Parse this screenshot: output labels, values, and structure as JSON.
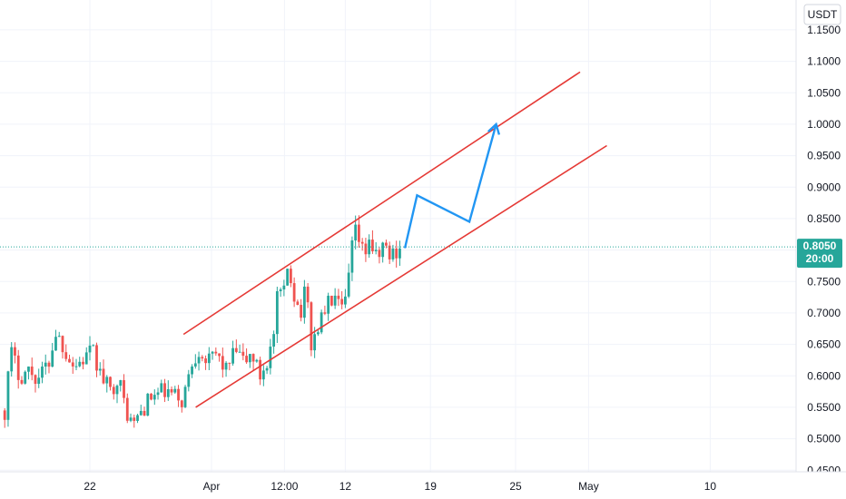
{
  "chart_data": {
    "type": "candlestick",
    "currency": "USDT",
    "ylim": [
      0.4475,
      1.1975
    ],
    "y_ticks": [
      {
        "value": 0.45,
        "label": "0.4500"
      },
      {
        "value": 0.5,
        "label": "0.5000"
      },
      {
        "value": 0.55,
        "label": "0.5500"
      },
      {
        "value": 0.6,
        "label": "0.6000"
      },
      {
        "value": 0.65,
        "label": "0.6500"
      },
      {
        "value": 0.7,
        "label": "0.7000"
      },
      {
        "value": 0.75,
        "label": "0.7500"
      },
      {
        "value": 0.8,
        "label": "0.8000"
      },
      {
        "value": 0.85,
        "label": "0.8500"
      },
      {
        "value": 0.9,
        "label": "0.9000"
      },
      {
        "value": 0.95,
        "label": "0.9500"
      },
      {
        "value": 1.0,
        "label": "1.0000"
      },
      {
        "value": 1.05,
        "label": "1.0500"
      },
      {
        "value": 1.1,
        "label": "1.1000"
      },
      {
        "value": 1.15,
        "label": "1.1500"
      }
    ],
    "x_ticks": [
      {
        "t": 0.0,
        "label": "22"
      },
      {
        "t": 10.0,
        "label": "Apr"
      },
      {
        "t": 16.0,
        "label": "12:00"
      },
      {
        "t": 21.0,
        "label": "12"
      },
      {
        "t": 28.0,
        "label": "19"
      },
      {
        "t": 35.0,
        "label": "25"
      },
      {
        "t": 41.0,
        "label": "May"
      },
      {
        "t": 51.0,
        "label": "10"
      }
    ],
    "last_price": {
      "value": 0.805,
      "label": "0.8050",
      "countdown": "20:00",
      "color": "#26a69a"
    },
    "colors": {
      "up": "#26a69a",
      "down": "#ef5350",
      "channel": "#e53935",
      "projection": "#2196f3",
      "grid": "#f0f3fa"
    },
    "price_path": [
      {
        "t": -7.0,
        "v": 0.545
      },
      {
        "t": -6.5,
        "v": 0.64
      },
      {
        "t": -5.8,
        "v": 0.6
      },
      {
        "t": -5.0,
        "v": 0.61
      },
      {
        "t": -4.3,
        "v": 0.595
      },
      {
        "t": -3.4,
        "v": 0.62
      },
      {
        "t": -2.8,
        "v": 0.67
      },
      {
        "t": -2.0,
        "v": 0.64
      },
      {
        "t": -1.3,
        "v": 0.615
      },
      {
        "t": -0.6,
        "v": 0.625
      },
      {
        "t": 0.2,
        "v": 0.64
      },
      {
        "t": 0.9,
        "v": 0.6
      },
      {
        "t": 1.7,
        "v": 0.575
      },
      {
        "t": 2.3,
        "v": 0.6
      },
      {
        "t": 2.9,
        "v": 0.55
      },
      {
        "t": 3.5,
        "v": 0.52
      },
      {
        "t": 4.1,
        "v": 0.54
      },
      {
        "t": 5.0,
        "v": 0.565
      },
      {
        "t": 6.0,
        "v": 0.575
      },
      {
        "t": 6.8,
        "v": 0.57
      },
      {
        "t": 7.6,
        "v": 0.56
      },
      {
        "t": 8.4,
        "v": 0.62
      },
      {
        "t": 9.0,
        "v": 0.645
      },
      {
        "t": 9.7,
        "v": 0.62
      },
      {
        "t": 10.4,
        "v": 0.635
      },
      {
        "t": 11.2,
        "v": 0.61
      },
      {
        "t": 12.0,
        "v": 0.64
      },
      {
        "t": 12.7,
        "v": 0.62
      },
      {
        "t": 13.3,
        "v": 0.635
      },
      {
        "t": 14.0,
        "v": 0.6
      },
      {
        "t": 14.6,
        "v": 0.625
      },
      {
        "t": 15.1,
        "v": 0.66
      },
      {
        "t": 15.5,
        "v": 0.74
      },
      {
        "t": 15.9,
        "v": 0.72
      },
      {
        "t": 16.3,
        "v": 0.78
      },
      {
        "t": 16.8,
        "v": 0.73
      },
      {
        "t": 17.3,
        "v": 0.7
      },
      {
        "t": 17.8,
        "v": 0.74
      },
      {
        "t": 18.2,
        "v": 0.65
      },
      {
        "t": 18.8,
        "v": 0.68
      },
      {
        "t": 19.4,
        "v": 0.71
      },
      {
        "t": 20.1,
        "v": 0.725
      },
      {
        "t": 20.6,
        "v": 0.7
      },
      {
        "t": 21.1,
        "v": 0.72
      },
      {
        "t": 21.5,
        "v": 0.8
      },
      {
        "t": 21.9,
        "v": 0.83
      },
      {
        "t": 22.5,
        "v": 0.79
      },
      {
        "t": 23.0,
        "v": 0.82
      },
      {
        "t": 23.6,
        "v": 0.78
      },
      {
        "t": 24.1,
        "v": 0.81
      },
      {
        "t": 24.6,
        "v": 0.79
      },
      {
        "t": 25.2,
        "v": 0.8
      },
      {
        "t": 25.6,
        "v": 0.805
      }
    ],
    "channel_lines": [
      {
        "name": "upper",
        "start": {
          "t": 7.7,
          "v": 0.666
        },
        "end": {
          "t": 40.3,
          "v": 1.083
        }
      },
      {
        "name": "lower",
        "start": {
          "t": 8.7,
          "v": 0.55
        },
        "end": {
          "t": 42.5,
          "v": 0.966
        }
      }
    ],
    "projection_path": [
      {
        "t": 25.9,
        "v": 0.803
      },
      {
        "t": 26.9,
        "v": 0.887
      },
      {
        "t": 31.2,
        "v": 0.845
      },
      {
        "t": 33.4,
        "v": 1.0
      }
    ]
  }
}
